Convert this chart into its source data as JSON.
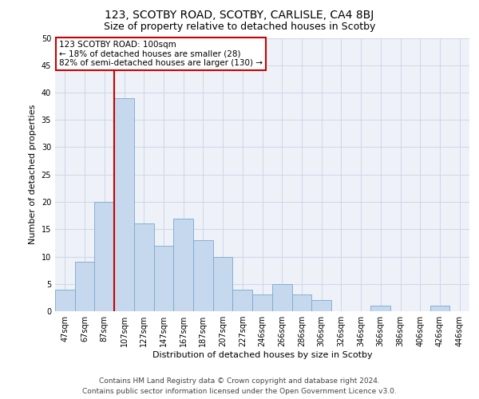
{
  "title_line1": "123, SCOTBY ROAD, SCOTBY, CARLISLE, CA4 8BJ",
  "title_line2": "Size of property relative to detached houses in Scotby",
  "xlabel": "Distribution of detached houses by size in Scotby",
  "ylabel": "Number of detached properties",
  "footer_line1": "Contains HM Land Registry data © Crown copyright and database right 2024.",
  "footer_line2": "Contains public sector information licensed under the Open Government Licence v3.0.",
  "bar_labels": [
    "47sqm",
    "67sqm",
    "87sqm",
    "107sqm",
    "127sqm",
    "147sqm",
    "167sqm",
    "187sqm",
    "207sqm",
    "227sqm",
    "246sqm",
    "266sqm",
    "286sqm",
    "306sqm",
    "326sqm",
    "346sqm",
    "366sqm",
    "386sqm",
    "406sqm",
    "426sqm",
    "446sqm"
  ],
  "bar_values": [
    4,
    9,
    20,
    39,
    16,
    12,
    17,
    13,
    10,
    4,
    3,
    5,
    3,
    2,
    0,
    0,
    1,
    0,
    0,
    1,
    0
  ],
  "bar_color": "#c5d8ed",
  "bar_edge_color": "#7aa8ce",
  "grid_color": "#d0d8e8",
  "background_color": "#eef2f8",
  "ylim": [
    0,
    50
  ],
  "yticks": [
    0,
    5,
    10,
    15,
    20,
    25,
    30,
    35,
    40,
    45,
    50
  ],
  "vline_index": 3,
  "vline_color": "#cc0000",
  "annotation_text": "123 SCOTBY ROAD: 100sqm\n← 18% of detached houses are smaller (28)\n82% of semi-detached houses are larger (130) →",
  "annotation_box_color": "#ffffff",
  "annotation_box_edge": "#cc0000",
  "title_fontsize": 10,
  "subtitle_fontsize": 9,
  "label_fontsize": 8,
  "tick_fontsize": 7,
  "footer_fontsize": 6.5,
  "annotation_fontsize": 7.5
}
